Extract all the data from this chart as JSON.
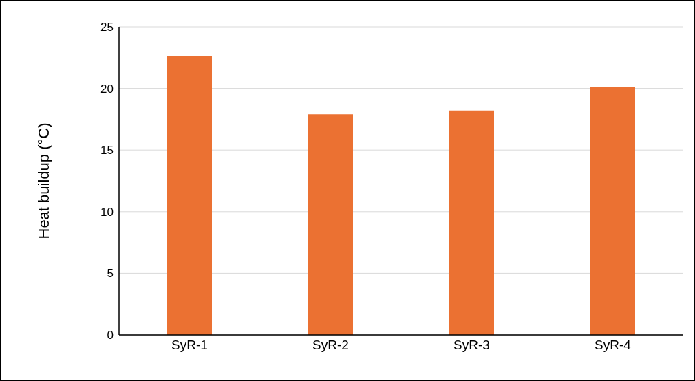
{
  "chart_data": {
    "type": "bar",
    "ylabel": "Heat buildup (°C)",
    "categories": [
      "SyR-1",
      "SyR-2",
      "SyR-3",
      "SyR-4"
    ],
    "values": [
      22.6,
      17.9,
      18.2,
      20.1
    ],
    "color": "#eb7132",
    "ylim": [
      0,
      25
    ],
    "yticks": [
      0,
      5,
      10,
      15,
      20,
      25
    ],
    "grid": "y"
  }
}
